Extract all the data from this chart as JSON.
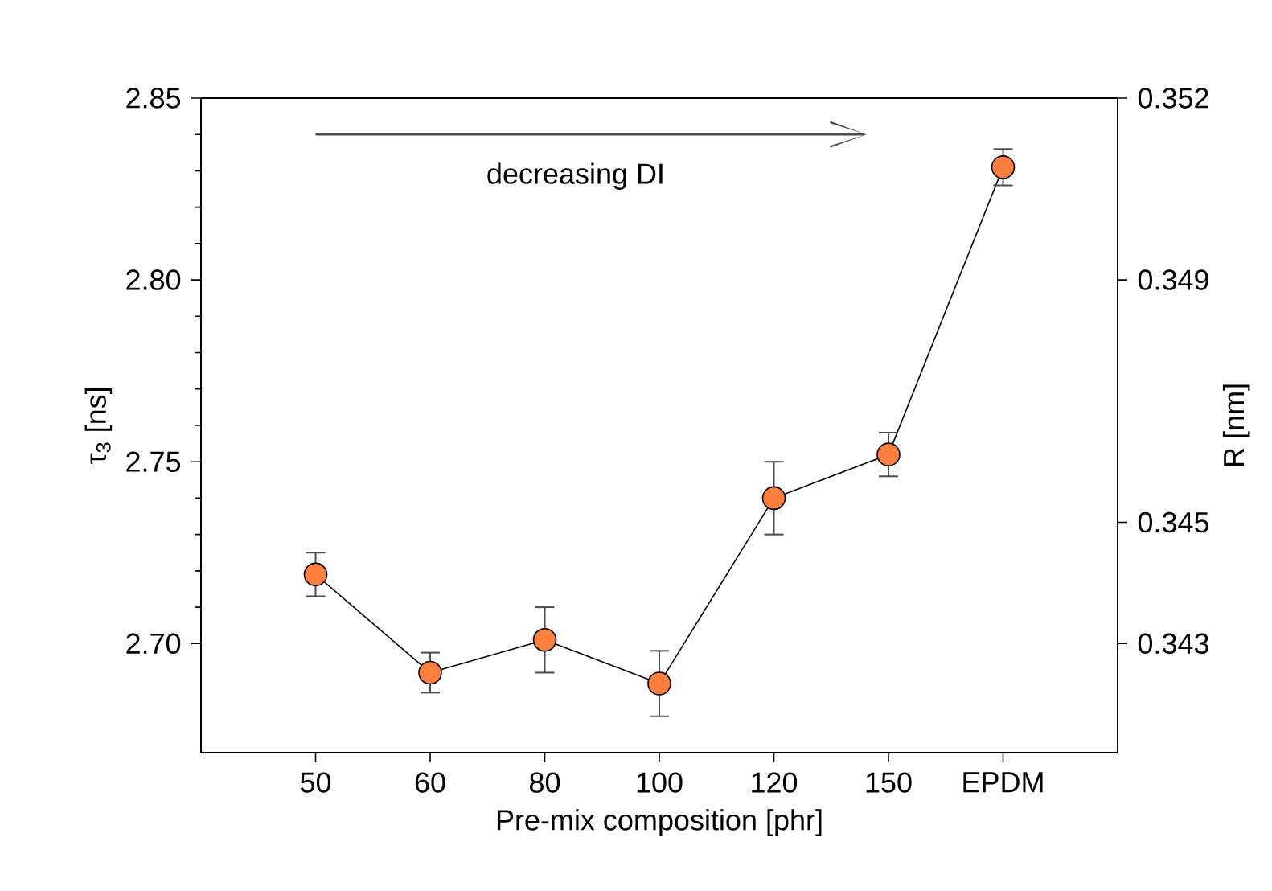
{
  "chart_data": {
    "type": "line",
    "xlabel": "Pre-mix composition [phr]",
    "ylabel": "τ$_{3}$ [ns]",
    "y2label": "R [nm]",
    "categories": [
      "50",
      "60",
      "80",
      "100",
      "120",
      "150",
      "EPDM"
    ],
    "series": [
      {
        "color": "#ff7f3f",
        "values": [
          2.719,
          2.692,
          2.701,
          2.689,
          2.74,
          2.752,
          2.831
        ],
        "errors": [
          0.006,
          0.0055,
          0.009,
          0.009,
          0.01,
          0.006,
          0.005
        ]
      }
    ],
    "ylim": [
      2.67,
      2.85
    ],
    "yticks": [
      {
        "value": 2.7,
        "label": "2.70"
      },
      2.75,
      {
        "value": 2.8,
        "label": "2.80"
      },
      2.85
    ],
    "y2lim": [
      0.3412,
      0.352
    ],
    "y2ticks": [
      0.343,
      0.345,
      0.349,
      0.352
    ],
    "annotations": [
      "decreasing DI"
    ],
    "marker": "circle",
    "line_style": "solid",
    "grid": false
  }
}
